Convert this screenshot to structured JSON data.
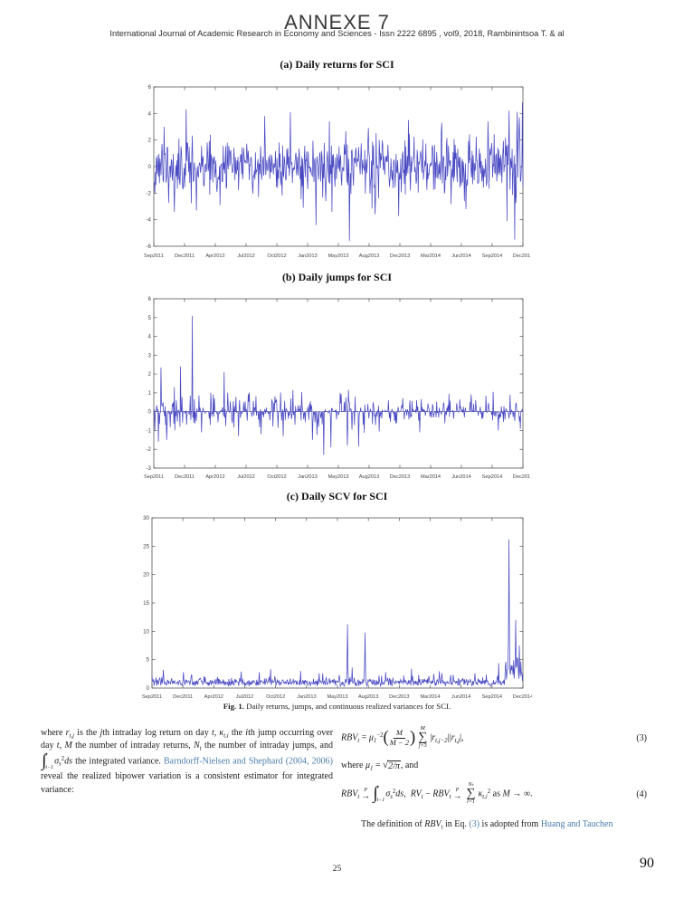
{
  "header": {
    "annexe": "ANNEXE 7",
    "journal_line": "International Journal of Academic Research in Economy and Sciences -  Issn 2222 6895 , vol9, 2018, Rambinintsoa T. & al"
  },
  "caption": {
    "label": "Fig. 1.",
    "text": " Daily returns, jumps, and continuous realized variances for SCI."
  },
  "footer": {
    "page_number": "25",
    "annex_page_number": "90"
  },
  "chart_data": [
    {
      "id": "daily-returns",
      "type": "line",
      "title": "(a) Daily returns for SCI",
      "xlabel": "",
      "ylabel": "",
      "line_color": "#3f3fc0",
      "x_ticks": [
        "Sep2011",
        "Dec2011",
        "Apr2012",
        "Jul2012",
        "Oct2012",
        "Jan2013",
        "May2013",
        "Aug2013",
        "Dec2013",
        "Mar2014",
        "Jun2014",
        "Sep2014",
        "Dec2014"
      ],
      "y_ticks": [
        6,
        4,
        2,
        0,
        -2,
        -4,
        -6
      ],
      "ylim": [
        -6,
        6
      ],
      "n_points": 720,
      "seed": 11,
      "noise": {
        "model": "gaussian",
        "std": 1.05
      },
      "end_boost": {
        "from": 0.952,
        "mult": 1.7
      },
      "zero_line": false,
      "spikes": [
        {
          "pos": 0.028,
          "value": 3.0
        },
        {
          "pos": 0.055,
          "value": -3.4
        },
        {
          "pos": 0.088,
          "value": 4.3
        },
        {
          "pos": 0.115,
          "value": -3.3
        },
        {
          "pos": 0.18,
          "value": -2.9
        },
        {
          "pos": 0.3,
          "value": 3.8
        },
        {
          "pos": 0.37,
          "value": 4.1
        },
        {
          "pos": 0.405,
          "value": -3.1
        },
        {
          "pos": 0.44,
          "value": -4.4
        },
        {
          "pos": 0.475,
          "value": 3.4
        },
        {
          "pos": 0.53,
          "value": -5.6
        },
        {
          "pos": 0.6,
          "value": -3.6
        },
        {
          "pos": 0.69,
          "value": 3.5
        },
        {
          "pos": 0.78,
          "value": 3.3
        },
        {
          "pos": 0.845,
          "value": -3.2
        },
        {
          "pos": 0.905,
          "value": 3.4
        },
        {
          "pos": 0.962,
          "value": 4.2
        },
        {
          "pos": 0.978,
          "value": -5.5
        },
        {
          "pos": 0.99,
          "value": 3.7
        }
      ]
    },
    {
      "id": "daily-jumps",
      "type": "line",
      "title": "(b) Daily jumps for SCI",
      "xlabel": "",
      "ylabel": "",
      "line_color": "#3f3fc0",
      "x_ticks": [
        "Sep2011",
        "Dec2011",
        "Apr2012",
        "Jul2012",
        "Oct2012",
        "Jan2013",
        "May2013",
        "Aug2013",
        "Dec2013",
        "Mar2014",
        "Jun2014",
        "Sep2014",
        "Dec2014"
      ],
      "y_ticks": [
        6,
        5,
        4,
        3,
        2,
        1,
        0,
        -1,
        -2,
        -3
      ],
      "ylim": [
        -3,
        6
      ],
      "n_points": 720,
      "seed": 22,
      "noise": {
        "model": "sparse",
        "prob": 0.55,
        "scale": 0.5
      },
      "zero_line": true,
      "spikes": [
        {
          "pos": 0.012,
          "value": -1.6
        },
        {
          "pos": 0.02,
          "value": 2.35
        },
        {
          "pos": 0.035,
          "value": -1.5
        },
        {
          "pos": 0.055,
          "value": 1.3
        },
        {
          "pos": 0.073,
          "value": 2.4
        },
        {
          "pos": 0.105,
          "value": 5.1
        },
        {
          "pos": 0.13,
          "value": -1.1
        },
        {
          "pos": 0.155,
          "value": 1.0
        },
        {
          "pos": 0.19,
          "value": 2.1
        },
        {
          "pos": 0.23,
          "value": -1.3
        },
        {
          "pos": 0.29,
          "value": -1.2
        },
        {
          "pos": 0.35,
          "value": -1.3
        },
        {
          "pos": 0.4,
          "value": 1.05
        },
        {
          "pos": 0.43,
          "value": -1.5
        },
        {
          "pos": 0.46,
          "value": -2.3
        },
        {
          "pos": 0.48,
          "value": -1.9
        },
        {
          "pos": 0.505,
          "value": 1.0
        },
        {
          "pos": 0.525,
          "value": -1.8
        },
        {
          "pos": 0.555,
          "value": -1.85
        },
        {
          "pos": 0.61,
          "value": -1.05
        },
        {
          "pos": 0.72,
          "value": -1.1
        },
        {
          "pos": 0.8,
          "value": 0.95
        },
        {
          "pos": 0.9,
          "value": 0.85
        },
        {
          "pos": 0.965,
          "value": 0.9
        }
      ]
    },
    {
      "id": "daily-scv",
      "type": "line",
      "title": "(c) Daily SCV for SCI",
      "xlabel": "",
      "ylabel": "",
      "line_color": "#3f3fc0",
      "x_ticks": [
        "Sep2011",
        "Dec2011",
        "Apr2012",
        "Jul2012",
        "Oct2012",
        "Jan2013",
        "May2013",
        "Aug2013",
        "Dec2013",
        "Mar2014",
        "Jun2014",
        "Sep2014",
        "Dec2014"
      ],
      "y_ticks": [
        30,
        25,
        20,
        15,
        10,
        5,
        0
      ],
      "ylim": [
        0,
        30
      ],
      "n_points": 720,
      "seed": 33,
      "noise": {
        "model": "positive",
        "scale": 0.45
      },
      "end_boost": {
        "from": 0.95,
        "add": 4
      },
      "zero_line": false,
      "spikes": [
        {
          "pos": 0.03,
          "value": 3.2
        },
        {
          "pos": 0.085,
          "value": 2.8
        },
        {
          "pos": 0.24,
          "value": 2.9
        },
        {
          "pos": 0.32,
          "value": 3.3
        },
        {
          "pos": 0.4,
          "value": 3.0
        },
        {
          "pos": 0.46,
          "value": 2.6
        },
        {
          "pos": 0.527,
          "value": 11.2
        },
        {
          "pos": 0.54,
          "value": 3.6
        },
        {
          "pos": 0.575,
          "value": 9.8
        },
        {
          "pos": 0.63,
          "value": 2.8
        },
        {
          "pos": 0.7,
          "value": 3.4
        },
        {
          "pos": 0.76,
          "value": 2.5
        },
        {
          "pos": 0.87,
          "value": 2.6
        },
        {
          "pos": 0.935,
          "value": 4.4
        },
        {
          "pos": 0.962,
          "value": 26.2
        },
        {
          "pos": 0.98,
          "value": 12.0
        },
        {
          "pos": 0.99,
          "value": 7.5
        }
      ]
    }
  ],
  "body": {
    "left_paragraph": [
      {
        "k": "t",
        "v": "where "
      },
      {
        "k": "i",
        "v": "r"
      },
      {
        "k": "sub",
        "v": "t,j"
      },
      {
        "k": "t",
        "v": " is the "
      },
      {
        "k": "i",
        "v": "j"
      },
      {
        "k": "t",
        "v": "th intraday log return on day "
      },
      {
        "k": "i",
        "v": "t"
      },
      {
        "k": "t",
        "v": ", "
      },
      {
        "k": "i",
        "v": "κ"
      },
      {
        "k": "sub",
        "v": "t,i"
      },
      {
        "k": "t",
        "v": " the "
      },
      {
        "k": "i",
        "v": "i"
      },
      {
        "k": "t",
        "v": "th jump occurring over day "
      },
      {
        "k": "i",
        "v": "t"
      },
      {
        "k": "t",
        "v": ", "
      },
      {
        "k": "i",
        "v": "M"
      },
      {
        "k": "t",
        "v": " the number of intraday returns, "
      },
      {
        "k": "i",
        "v": "N"
      },
      {
        "k": "sub",
        "v": "t"
      },
      {
        "k": "t",
        "v": " the number of intraday jumps, and "
      },
      {
        "k": "int",
        "top": "t",
        "bot": "t−1"
      },
      {
        "k": "i",
        "v": "σ"
      },
      {
        "k": "sub",
        "v": "s"
      },
      {
        "k": "sup",
        "v": "2"
      },
      {
        "k": "i",
        "v": "ds"
      },
      {
        "k": "t",
        "v": " the integrated variance. "
      },
      {
        "k": "link",
        "v": "Barndorff-Nielsen and Shephard (2004, 2006)"
      },
      {
        "k": "t",
        "v": " reveal the realized bipower variation is a consistent estimator for integrated variance:"
      }
    ],
    "eq3": [
      {
        "k": "i",
        "v": "RBV"
      },
      {
        "k": "sub",
        "v": "t"
      },
      {
        "k": "t",
        "v": " = "
      },
      {
        "k": "i",
        "v": "μ"
      },
      {
        "k": "sub",
        "v": "1"
      },
      {
        "k": "sup",
        "v": "−2"
      },
      {
        "k": "paren",
        "v": "("
      },
      {
        "k": "frac",
        "num": "M",
        "den": "M − 2"
      },
      {
        "k": "paren",
        "v": ")"
      },
      {
        "k": "sum",
        "top": "M",
        "bot": "j=3"
      },
      {
        "k": "t",
        "v": "|"
      },
      {
        "k": "i",
        "v": "r"
      },
      {
        "k": "sub",
        "v": "t,j−2"
      },
      {
        "k": "t",
        "v": "||"
      },
      {
        "k": "i",
        "v": "r"
      },
      {
        "k": "sub",
        "v": "t,j"
      },
      {
        "k": "t",
        "v": "|,"
      }
    ],
    "eq3_number": "(3)",
    "where_line": [
      {
        "k": "t",
        "v": "where "
      },
      {
        "k": "i",
        "v": "μ"
      },
      {
        "k": "sub",
        "v": "1"
      },
      {
        "k": "t",
        "v": " = "
      },
      {
        "k": "sqrt",
        "v": "2/π"
      },
      {
        "k": "t",
        "v": ", and"
      }
    ],
    "eq4": [
      {
        "k": "i",
        "v": "RBV"
      },
      {
        "k": "sub",
        "v": "t"
      },
      {
        "k": "arrow",
        "top": "P"
      },
      {
        "k": "int",
        "top": "t",
        "bot": "t−1"
      },
      {
        "k": "i",
        "v": "σ"
      },
      {
        "k": "sub",
        "v": "s"
      },
      {
        "k": "sup",
        "v": "2"
      },
      {
        "k": "i",
        "v": "ds"
      },
      {
        "k": "t",
        "v": ",  "
      },
      {
        "k": "i",
        "v": "RV"
      },
      {
        "k": "sub",
        "v": "t"
      },
      {
        "k": "t",
        "v": " − "
      },
      {
        "k": "i",
        "v": "RBV"
      },
      {
        "k": "sub",
        "v": "t"
      },
      {
        "k": "arrow",
        "top": "P"
      },
      {
        "k": "sum",
        "top": "Nₜ",
        "bot": "i=1"
      },
      {
        "k": "i",
        "v": "κ"
      },
      {
        "k": "sub",
        "v": "t,i"
      },
      {
        "k": "sup",
        "v": "2"
      },
      {
        "k": "t",
        "v": " as "
      },
      {
        "k": "i",
        "v": "M"
      },
      {
        "k": "t",
        "v": " → ∞."
      }
    ],
    "eq4_number": "(4)",
    "closing_line": [
      {
        "k": "t",
        "v": "The definition of "
      },
      {
        "k": "i",
        "v": "RBV"
      },
      {
        "k": "sub",
        "v": "t"
      },
      {
        "k": "t",
        "v": " in Eq. "
      },
      {
        "k": "link",
        "v": "(3)"
      },
      {
        "k": "t",
        "v": " is adopted from "
      },
      {
        "k": "link",
        "v": "Huang and Tauchen"
      }
    ]
  }
}
